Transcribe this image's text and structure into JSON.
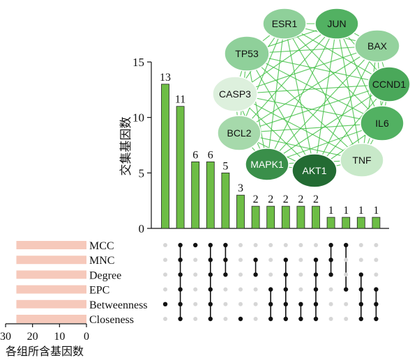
{
  "chart_data": {
    "type": "upset",
    "ylabel": "交集基因数",
    "ylim": [
      0,
      15
    ],
    "y_ticks": [
      0,
      5,
      10,
      15
    ],
    "set_size_label": "各组所含基因数",
    "set_size_xlim": [
      30,
      0
    ],
    "set_size_ticks": [
      30,
      20,
      10,
      0
    ],
    "sets": [
      {
        "name": "MCC",
        "size": 26
      },
      {
        "name": "MNC",
        "size": 26
      },
      {
        "name": "Degree",
        "size": 26
      },
      {
        "name": "EPC",
        "size": 26
      },
      {
        "name": "Betweenness",
        "size": 26
      },
      {
        "name": "Closeness",
        "size": 26
      }
    ],
    "intersections": [
      {
        "value": 13,
        "members": [
          "Betweenness"
        ]
      },
      {
        "value": 11,
        "members": [
          "MCC",
          "MNC",
          "Degree",
          "EPC",
          "Betweenness",
          "Closeness"
        ]
      },
      {
        "value": 6,
        "members": [
          "MCC"
        ]
      },
      {
        "value": 6,
        "members": [
          "MCC",
          "MNC",
          "Degree",
          "EPC",
          "Betweenness",
          "Closeness"
        ]
      },
      {
        "value": 5,
        "members": [
          "MCC",
          "MNC",
          "Degree"
        ]
      },
      {
        "value": 3,
        "members": [
          "Closeness"
        ]
      },
      {
        "value": 2,
        "members": [
          "MNC",
          "Degree"
        ]
      },
      {
        "value": 2,
        "members": [
          "EPC",
          "Betweenness",
          "Closeness"
        ]
      },
      {
        "value": 2,
        "members": [
          "MNC",
          "Degree",
          "EPC",
          "Betweenness",
          "Closeness"
        ]
      },
      {
        "value": 2,
        "members": [
          "Betweenness",
          "Closeness"
        ]
      },
      {
        "value": 2,
        "members": [
          "MNC",
          "Degree",
          "EPC",
          "Betweenness",
          "Closeness"
        ]
      },
      {
        "value": 1,
        "members": [
          "MCC",
          "MNC",
          "Degree"
        ]
      },
      {
        "value": 1,
        "members": [
          "MCC",
          "EPC"
        ]
      },
      {
        "value": 1,
        "members": [
          "Degree",
          "EPC",
          "Betweenness",
          "Closeness"
        ]
      },
      {
        "value": 1,
        "members": [
          "EPC",
          "Betweenness",
          "Closeness"
        ]
      }
    ],
    "bar_color": "#6dbd45",
    "set_bar_color": "#f6c9bb"
  },
  "network": {
    "nodes": [
      {
        "label": "ESR1",
        "color": "#8fd09a"
      },
      {
        "label": "JUN",
        "color": "#52b162"
      },
      {
        "label": "BAX",
        "color": "#94d29d"
      },
      {
        "label": "TP53",
        "color": "#8fd09a"
      },
      {
        "label": "CCND1",
        "color": "#4aa85a"
      },
      {
        "label": "CASP3",
        "color": "#ddf0dd"
      },
      {
        "label": "IL6",
        "color": "#52b162"
      },
      {
        "label": "BCL2",
        "color": "#a6d9ab"
      },
      {
        "label": "TNF",
        "color": "#c8e9c9"
      },
      {
        "label": "MAPK1",
        "color": "#3a8f4a"
      },
      {
        "label": "AKT1",
        "color": "#236b33"
      }
    ],
    "edge_color": "#3ebe42"
  }
}
